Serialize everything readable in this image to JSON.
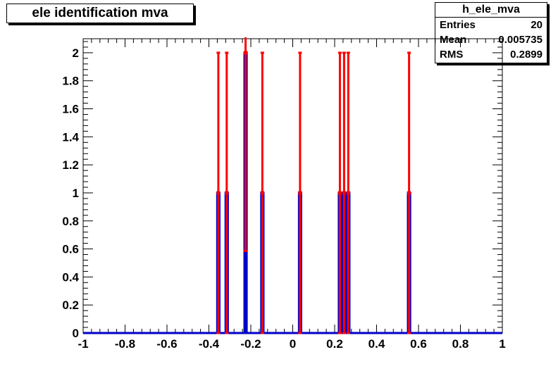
{
  "title": "ele identification mva",
  "stats": {
    "name": "h_ele_mva",
    "rows": [
      {
        "label": "Entries",
        "value": "20"
      },
      {
        "label": "Mean",
        "value": "0.005735"
      },
      {
        "label": "RMS",
        "value": "0.2899"
      }
    ]
  },
  "chart_data": {
    "type": "bar",
    "title": "ele identification mva",
    "xlim": [
      -1,
      1
    ],
    "ylim": [
      0,
      2.1
    ],
    "xticks": [
      -1,
      -0.8,
      -0.6,
      -0.4,
      -0.2,
      0,
      0.2,
      0.4,
      0.6,
      0.8,
      1
    ],
    "xtick_labels": [
      "-1",
      "-0.8",
      "-0.6",
      "-0.4",
      "-0.2",
      "0",
      "0.2",
      "0.4",
      "0.6",
      "0.8",
      "1"
    ],
    "yticks": [
      0,
      0.2,
      0.4,
      0.6,
      0.8,
      1,
      1.2,
      1.4,
      1.6,
      1.8,
      2
    ],
    "ytick_labels": [
      "0",
      "0.2",
      "0.4",
      "0.6",
      "0.8",
      "1",
      "1.2",
      "1.4",
      "1.6",
      "1.8",
      "2"
    ],
    "bin_width": 0.01,
    "bins": [
      {
        "x": -0.355,
        "y": 1
      },
      {
        "x": -0.315,
        "y": 1
      },
      {
        "x": -0.225,
        "y": 2
      },
      {
        "x": -0.145,
        "y": 1
      },
      {
        "x": 0.035,
        "y": 1
      },
      {
        "x": 0.225,
        "y": 1
      },
      {
        "x": 0.245,
        "y": 1
      },
      {
        "x": 0.265,
        "y": 1
      },
      {
        "x": 0.555,
        "y": 1
      }
    ],
    "hist_color": "#0000cc",
    "error_color": "#ff0000"
  }
}
